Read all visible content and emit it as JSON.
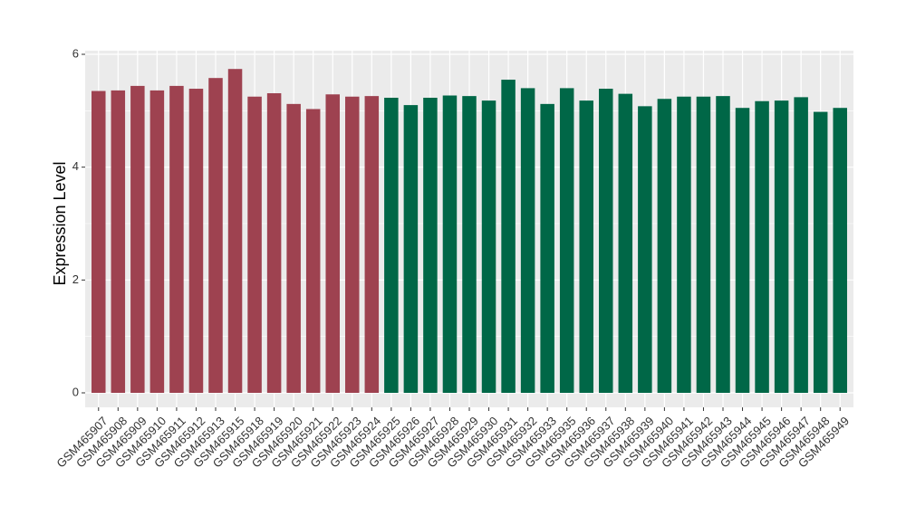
{
  "chart_data": {
    "type": "bar",
    "title": "",
    "xlabel": "",
    "ylabel": "Expression Level",
    "ylim": [
      0,
      6
    ],
    "yticks": [
      0,
      2,
      4,
      6
    ],
    "grid": true,
    "legend": "none",
    "background_color": "#EBEBEB",
    "gridline_color": "#FFFFFF",
    "categories": [
      "GSM465907",
      "GSM465908",
      "GSM465909",
      "GSM465910",
      "GSM465911",
      "GSM465912",
      "GSM465913",
      "GSM465915",
      "GSM465918",
      "GSM465919",
      "GSM465920",
      "GSM465921",
      "GSM465922",
      "GSM465923",
      "GSM465924",
      "GSM465925",
      "GSM465926",
      "GSM465927",
      "GSM465928",
      "GSM465929",
      "GSM465930",
      "GSM465931",
      "GSM465932",
      "GSM465933",
      "GSM465935",
      "GSM465936",
      "GSM465937",
      "GSM465938",
      "GSM465939",
      "GSM465940",
      "GSM465941",
      "GSM465942",
      "GSM465943",
      "GSM465944",
      "GSM465945",
      "GSM465946",
      "GSM465947",
      "GSM465948",
      "GSM465949"
    ],
    "values": [
      5.35,
      5.36,
      5.44,
      5.36,
      5.44,
      5.39,
      5.58,
      5.74,
      5.25,
      5.31,
      5.12,
      5.03,
      5.29,
      5.25,
      5.26,
      5.23,
      5.1,
      5.23,
      5.27,
      5.26,
      5.18,
      5.55,
      5.4,
      5.12,
      5.4,
      5.18,
      5.39,
      5.3,
      5.08,
      5.21,
      5.25,
      5.25,
      5.26,
      5.05,
      5.17,
      5.18,
      5.24,
      4.98,
      5.05
    ],
    "bar_colors": [
      "#9E4250",
      "#9E4250",
      "#9E4250",
      "#9E4250",
      "#9E4250",
      "#9E4250",
      "#9E4250",
      "#9E4250",
      "#9E4250",
      "#9E4250",
      "#9E4250",
      "#9E4250",
      "#9E4250",
      "#9E4250",
      "#9E4250",
      "#006747",
      "#006747",
      "#006747",
      "#006747",
      "#006747",
      "#006747",
      "#006747",
      "#006747",
      "#006747",
      "#006747",
      "#006747",
      "#006747",
      "#006747",
      "#006747",
      "#006747",
      "#006747",
      "#006747",
      "#006747",
      "#006747",
      "#006747",
      "#006747",
      "#006747",
      "#006747",
      "#006747"
    ]
  }
}
